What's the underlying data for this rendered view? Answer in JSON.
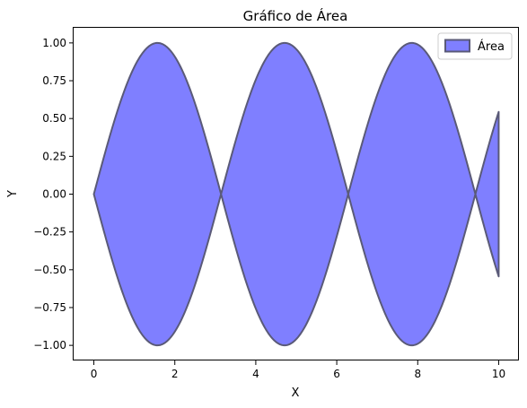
{
  "chart_data": {
    "type": "area",
    "title": "Gráfico de Área",
    "xlabel": "X",
    "ylabel": "Y",
    "xlim": [
      -0.5,
      10.5
    ],
    "ylim": [
      -1.1,
      1.1
    ],
    "xticks": [
      0,
      2,
      4,
      6,
      8,
      10
    ],
    "xtick_labels": [
      "0",
      "2",
      "4",
      "6",
      "8",
      "10"
    ],
    "yticks": [
      -1.0,
      -0.75,
      -0.5,
      -0.25,
      0.0,
      0.25,
      0.5,
      0.75,
      1.0
    ],
    "ytick_labels": [
      "−1.00",
      "−0.75",
      "−0.50",
      "−0.25",
      "0.00",
      "0.25",
      "0.50",
      "0.75",
      "1.00"
    ],
    "grid": false,
    "legend_position": "top-right",
    "series": [
      {
        "name": "Área",
        "description": "filled between y = sin(x) and y = -sin(x)",
        "x": [
          0,
          0.5,
          1.0,
          1.5708,
          2.0,
          2.5,
          3.1416,
          3.5,
          4.0,
          4.7124,
          5.0,
          5.5,
          6.2832,
          6.5,
          7.0,
          7.854,
          8.5,
          9.0,
          9.4248,
          10.0
        ],
        "upper": [
          0,
          0.479,
          0.841,
          1.0,
          0.909,
          0.598,
          0,
          0.351,
          0.757,
          1.0,
          0.959,
          0.706,
          0,
          0.215,
          0.657,
          1.0,
          0.798,
          0.412,
          0,
          0.544
        ],
        "lower": [
          0,
          -0.479,
          -0.841,
          -1.0,
          -0.909,
          -0.598,
          0,
          -0.351,
          -0.757,
          -1.0,
          -0.959,
          -0.706,
          0,
          -0.215,
          -0.657,
          -1.0,
          -0.798,
          -0.412,
          0,
          -0.544
        ]
      }
    ],
    "colors": {
      "fill": "#7f7fff",
      "edge": "#5a5a78"
    }
  }
}
